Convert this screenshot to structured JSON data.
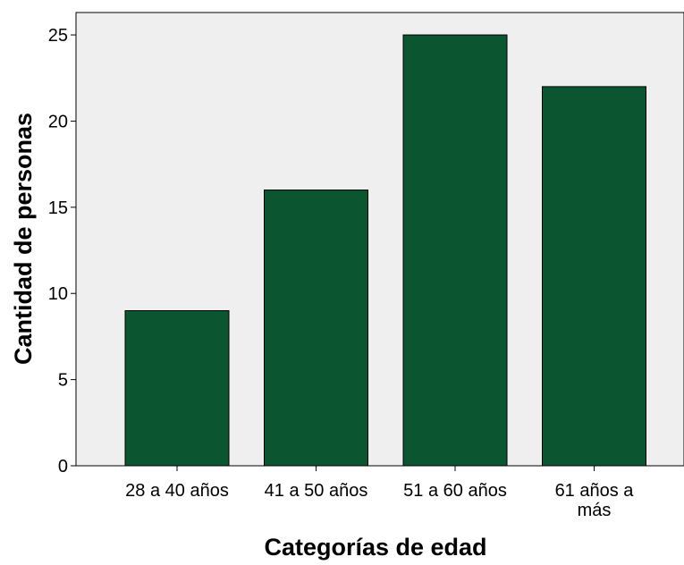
{
  "chart_data": {
    "type": "bar",
    "categories": [
      [
        "28 a 40 años"
      ],
      [
        "41 a 50 años"
      ],
      [
        "51 a 60 años"
      ],
      [
        "61 años a",
        "más"
      ]
    ],
    "values": [
      9,
      16,
      25,
      22
    ],
    "title": "",
    "xlabel": "Categorías de edad",
    "ylabel": "Cantidad de personas",
    "ylim": [
      0,
      26.3
    ],
    "yticks": [
      0,
      5,
      10,
      15,
      20,
      25
    ],
    "grid": false,
    "legend": "none",
    "colors": {
      "bar_fill": "#0b5630",
      "bar_stroke": "#000000",
      "plot_background": "#efefef",
      "page_background": "#ffffff"
    }
  }
}
